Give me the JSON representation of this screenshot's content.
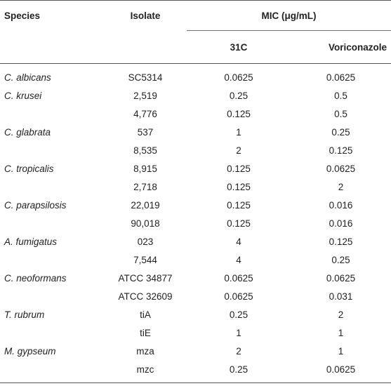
{
  "table": {
    "headers": {
      "species": "Species",
      "isolate": "Isolate",
      "mic_group": "MIC (μg/mL)",
      "col_31c": "31C",
      "col_voriconazole": "Voriconazole"
    },
    "rows": [
      {
        "species": "C. albicans",
        "isolate": "SC5314",
        "v31c": "0.0625",
        "vor": "0.0625"
      },
      {
        "species": "C. krusei",
        "isolate": "2,519",
        "v31c": "0.25",
        "vor": "0.5"
      },
      {
        "species": "",
        "isolate": "4,776",
        "v31c": "0.125",
        "vor": "0.5"
      },
      {
        "species": "C. glabrata",
        "isolate": "537",
        "v31c": "1",
        "vor": "0.25"
      },
      {
        "species": "",
        "isolate": "8,535",
        "v31c": "2",
        "vor": "0.125"
      },
      {
        "species": "C. tropicalis",
        "isolate": "8,915",
        "v31c": "0.125",
        "vor": "0.0625"
      },
      {
        "species": "",
        "isolate": "2,718",
        "v31c": "0.125",
        "vor": "2"
      },
      {
        "species": "C. parapsilosis",
        "isolate": "22,019",
        "v31c": "0.125",
        "vor": "0.016"
      },
      {
        "species": "",
        "isolate": "90,018",
        "v31c": "0.125",
        "vor": "0.016"
      },
      {
        "species": "A. fumigatus",
        "isolate": "023",
        "v31c": "4",
        "vor": "0.125"
      },
      {
        "species": "",
        "isolate": "7,544",
        "v31c": "4",
        "vor": "0.25"
      },
      {
        "species": "C. neoformans",
        "isolate": "ATCC 34877",
        "v31c": "0.0625",
        "vor": "0.0625"
      },
      {
        "species": "",
        "isolate": "ATCC 32609",
        "v31c": "0.0625",
        "vor": "0.031"
      },
      {
        "species": "T. rubrum",
        "isolate": "tiA",
        "v31c": "0.25",
        "vor": "2"
      },
      {
        "species": "",
        "isolate": "tiE",
        "v31c": "1",
        "vor": "1"
      },
      {
        "species": "M. gypseum",
        "isolate": "mza",
        "v31c": "2",
        "vor": "1"
      },
      {
        "species": "",
        "isolate": "mzc",
        "v31c": "0.25",
        "vor": "0.0625"
      }
    ]
  }
}
